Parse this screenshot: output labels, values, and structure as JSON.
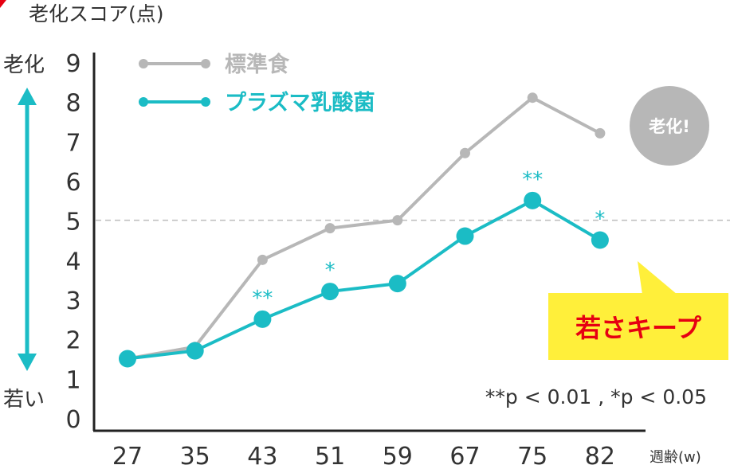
{
  "chart_data": {
    "type": "line",
    "title": "老化スコア(点)",
    "xlabel": "週齢(w)",
    "ylabel_top": "老化",
    "ylabel_bottom": "若い",
    "ylim": [
      0,
      9
    ],
    "yticks": [
      0,
      1,
      2,
      3,
      4,
      5,
      6,
      7,
      8,
      9
    ],
    "categories": [
      "27",
      "35",
      "43",
      "51",
      "59",
      "67",
      "75",
      "82"
    ],
    "reference_line": 5,
    "series": [
      {
        "name": "標準食",
        "color": "#b7b7b7",
        "values": [
          1.5,
          1.8,
          4.0,
          4.8,
          5.0,
          6.7,
          8.1,
          7.2
        ]
      },
      {
        "name": "プラズマ乳酸菌",
        "color": "#1bbcc5",
        "values": [
          1.5,
          1.7,
          2.5,
          3.2,
          3.4,
          4.6,
          5.5,
          4.5
        ],
        "significance": [
          "",
          "",
          "**",
          "*",
          "",
          "",
          "**",
          "*"
        ]
      }
    ],
    "badges": {
      "aging": "老化!",
      "callout": "若さキープ"
    },
    "note": "**p < 0.01 , *p < 0.05"
  },
  "colors": {
    "gray": "#b7b7b7",
    "teal": "#1bbcc5",
    "callout_bg": "#ffef3a",
    "callout_text": "#e60012",
    "text": "#333333"
  }
}
